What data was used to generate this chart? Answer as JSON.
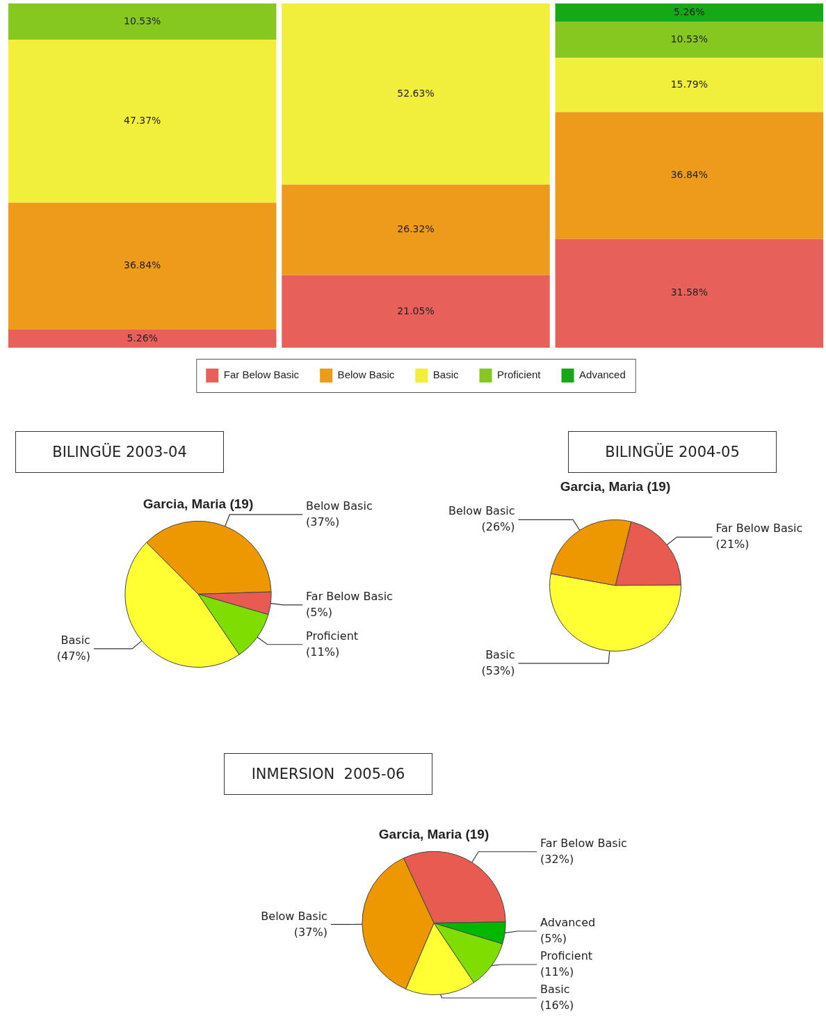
{
  "chart_data": [
    {
      "type": "bar",
      "stacked": true,
      "categories": [
        null,
        null,
        null
      ],
      "ylim": [
        0,
        100
      ],
      "tick_labels": false,
      "grid": false,
      "legend": "bottom",
      "series": [
        {
          "name": "Far Below Basic",
          "color": "#e8605a",
          "values": [
            5.26,
            21.05,
            31.58
          ],
          "value_labels": [
            "5.26%",
            "21.05%",
            "31.58%"
          ]
        },
        {
          "name": "Below Basic",
          "color": "#ee9a1a",
          "values": [
            36.84,
            26.32,
            36.84
          ],
          "value_labels": [
            "36.84%",
            "26.32%",
            "36.84%"
          ]
        },
        {
          "name": "Basic",
          "color": "#f2ee3c",
          "values": [
            47.37,
            52.63,
            15.79
          ],
          "value_labels": [
            "47.37%",
            "52.63%",
            "15.79%"
          ]
        },
        {
          "name": "Proficient",
          "color": "#86c820",
          "values": [
            10.53,
            null,
            10.53
          ],
          "value_labels": [
            "10.53%",
            null,
            "10.53%"
          ]
        },
        {
          "name": "Advanced",
          "color": "#16a816",
          "values": [
            null,
            null,
            5.26
          ],
          "value_labels": [
            null,
            null,
            "5.26%"
          ]
        }
      ]
    },
    {
      "type": "pie",
      "title": "BILINGÜE 2003-04",
      "subtitle": "Garcia, Maria (19)",
      "categories": [
        "Below Basic",
        "Far Below Basic",
        "Proficient",
        "Basic"
      ],
      "values": [
        37,
        5,
        11,
        47
      ],
      "colors": [
        "#ee9800",
        "#e85b50",
        "#80dd00",
        "#ffff33"
      ],
      "value_labels": [
        "(37%)",
        "(5%)",
        "(11%)",
        "(47%)"
      ]
    },
    {
      "type": "pie",
      "title": "BILINGÜE 2004-05",
      "subtitle": "Garcia, Maria (19)",
      "categories": [
        "Far Below Basic",
        "Basic",
        "Below Basic"
      ],
      "values": [
        21,
        53,
        26
      ],
      "colors": [
        "#e85b50",
        "#ffff33",
        "#ee9800"
      ],
      "value_labels": [
        "(21%)",
        "(53%)",
        "(26%)"
      ]
    },
    {
      "type": "pie",
      "title": "INMERSION  2005-06",
      "subtitle": "Garcia, Maria (19)",
      "categories": [
        "Far Below Basic",
        "Advanced",
        "Proficient",
        "Basic",
        "Below Basic"
      ],
      "values": [
        32,
        5,
        11,
        16,
        37
      ],
      "colors": [
        "#e85b50",
        "#00b800",
        "#80dd00",
        "#ffff33",
        "#ee9800"
      ],
      "value_labels": [
        "(32%)",
        "(5%)",
        "(11%)",
        "(16%)",
        "(37%)"
      ]
    }
  ]
}
